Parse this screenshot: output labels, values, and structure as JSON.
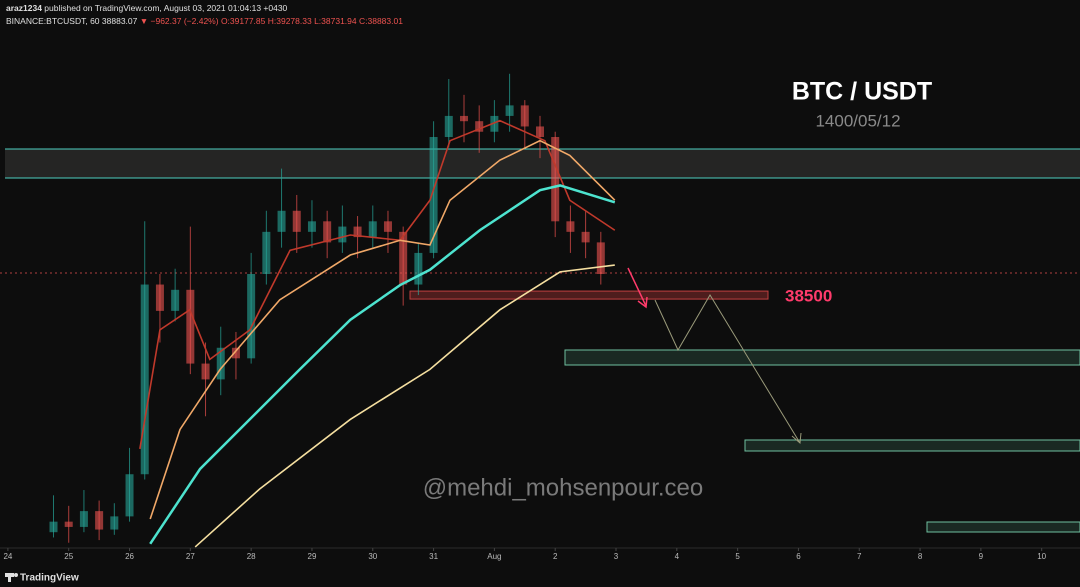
{
  "header": {
    "user": "araz1234",
    "published": "published on TradingView.com, August 03, 2021 01:04:13 +0430",
    "symbol": "BINANCE:BTCUSDT, 60",
    "price": "38883.07",
    "change": "▼ −962.37 (−2.42%)",
    "ohlc": [
      "O:39177.85",
      "H:39278.33",
      "L:38731.94",
      "C:38883.01"
    ]
  },
  "footer": {
    "brand": "TradingView"
  },
  "chart_data": {
    "type": "candlestick",
    "title": "BTC / USDT",
    "subtitle": "1400/05/12",
    "level": 38500,
    "watermark": "@mehdi_mohsenpour.ceo",
    "xlim": [
      -0.13,
      17.63
    ],
    "ylim": [
      33700,
      44100
    ],
    "grid": false,
    "xticks": [
      {
        "value": 0,
        "label": "24"
      },
      {
        "value": 1,
        "label": "25"
      },
      {
        "value": 2,
        "label": "26"
      },
      {
        "value": 3,
        "label": "27"
      },
      {
        "value": 4,
        "label": "28"
      },
      {
        "value": 5,
        "label": "29"
      },
      {
        "value": 6,
        "label": "30"
      },
      {
        "value": 7,
        "label": "31"
      },
      {
        "value": 8,
        "label": "Aug"
      },
      {
        "value": 9,
        "label": "2"
      },
      {
        "value": 10,
        "label": "3"
      },
      {
        "value": 11,
        "label": "4"
      },
      {
        "value": 12,
        "label": "5"
      },
      {
        "value": 13,
        "label": "6"
      },
      {
        "value": 14,
        "label": "7"
      },
      {
        "value": 15,
        "label": "8"
      },
      {
        "value": 16,
        "label": "9"
      },
      {
        "value": 17,
        "label": "10"
      }
    ],
    "up_color": "#26a69a",
    "down_color": "#ef5350",
    "x": [
      0.75,
      1,
      1.25,
      1.5,
      1.75,
      2,
      2.25,
      2.5,
      2.75,
      3,
      3.25,
      3.5,
      3.75,
      4,
      4.25,
      4.5,
      4.75,
      5,
      5.25,
      5.5,
      5.75,
      6,
      6.25,
      6.5,
      6.75,
      7,
      7.25,
      7.5,
      7.75,
      8,
      8.25,
      8.5,
      8.75,
      9,
      9.25,
      9.5,
      9.75
    ],
    "open": [
      34000,
      34200,
      34100,
      34400,
      34050,
      34300,
      35100,
      38700,
      38200,
      38600,
      37200,
      36900,
      37500,
      37300,
      38900,
      39700,
      40100,
      39700,
      39900,
      39500,
      39800,
      39600,
      39900,
      39700,
      38700,
      39300,
      41500,
      41900,
      41800,
      41600,
      41900,
      42100,
      41700,
      41500,
      39900,
      39700,
      39500
    ],
    "high": [
      34700,
      34500,
      34800,
      34600,
      34550,
      35600,
      39900,
      38900,
      39000,
      39800,
      37600,
      37900,
      37800,
      39300,
      40100,
      40900,
      40400,
      40300,
      40100,
      40200,
      40000,
      40200,
      40100,
      39800,
      39500,
      41800,
      42600,
      42300,
      42100,
      42200,
      42700,
      42200,
      41900,
      41600,
      40200,
      40100,
      39700
    ],
    "low": [
      33900,
      33800,
      34000,
      33850,
      33950,
      34200,
      35000,
      37600,
      38000,
      37000,
      36200,
      36600,
      36900,
      37200,
      38700,
      39400,
      39300,
      39400,
      39200,
      39300,
      39200,
      39400,
      39300,
      38300,
      38500,
      39200,
      41300,
      41400,
      41200,
      41400,
      41600,
      41300,
      41100,
      39600,
      39300,
      39200,
      38700
    ],
    "close": [
      34200,
      34100,
      34400,
      34050,
      34300,
      35100,
      38700,
      38200,
      38600,
      37200,
      36900,
      37500,
      37300,
      38900,
      39700,
      40100,
      39700,
      39900,
      39500,
      39800,
      39600,
      39900,
      39700,
      38700,
      39300,
      41500,
      41900,
      41800,
      41600,
      41900,
      42100,
      41700,
      41500,
      39900,
      39700,
      39500,
      38900
    ],
    "lines": [
      {
        "color": "#c0392b",
        "x": [
          2.17,
          2.5,
          2.99,
          3.32,
          3.98,
          4.64,
          5.63,
          6.45,
          6.94,
          7.27,
          8.09,
          8.83,
          9.24,
          9.98
        ],
        "values": [
          35580,
          37840,
          38220,
          37280,
          37840,
          39350,
          39640,
          39540,
          40300,
          41430,
          41810,
          41430,
          40300,
          39730
        ]
      },
      {
        "color": "#f0a868",
        "x": [
          2.34,
          2.83,
          3.49,
          4.47,
          5.63,
          6.45,
          6.94,
          7.27,
          8.09,
          8.75,
          9.24,
          9.98
        ],
        "values": [
          34250,
          35950,
          37090,
          38410,
          39260,
          39540,
          39450,
          40300,
          41060,
          41430,
          41150,
          40300
        ]
      },
      {
        "color": "#4de3cf",
        "x": [
          2.34,
          3.16,
          4.8,
          5.63,
          6.45,
          6.94,
          7.76,
          8.75,
          9.08,
          9.98
        ],
        "values": [
          33780,
          35200,
          37090,
          38030,
          38690,
          38980,
          39730,
          40490,
          40580,
          40260
        ]
      },
      {
        "color": "#f5dfa0",
        "x": [
          3.08,
          4.14,
          5.63,
          6.94,
          8.09,
          9.08,
          9.98
        ],
        "values": [
          33720,
          34820,
          36140,
          37090,
          38220,
          38940,
          39070
        ]
      }
    ]
  }
}
